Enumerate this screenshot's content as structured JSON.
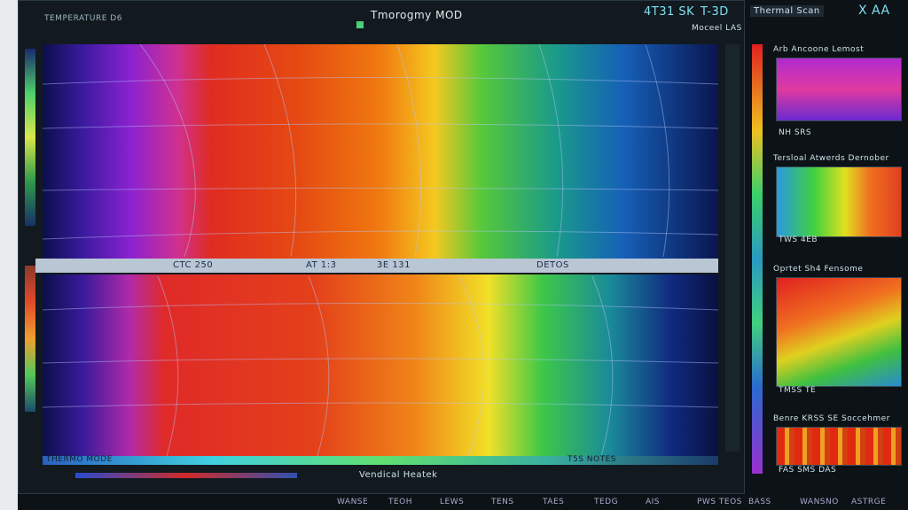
{
  "header": {
    "title": "Tmorogmy MOD",
    "left_label": "TEMPERATURE D6",
    "readouts": [
      "4T31 SK",
      "T-3D"
    ],
    "menu": "Thermal Scan",
    "corner": "X AA"
  },
  "main": {
    "divider_labels": [
      "CTC 250",
      "AT 1:3",
      "3E 131",
      "DETOS"
    ],
    "bottom_left": "THERMO MODE",
    "bottom_right": "T5S NOTES",
    "bottom_caption": "Vendical Heatek"
  },
  "side": {
    "header": "Moceel LAS",
    "panels": [
      {
        "title": "Arb Ancoone Lemost",
        "caption": "NH SRS"
      },
      {
        "title": "Tersloal Atwerds Dernober",
        "caption": "TWS 4EB"
      },
      {
        "title": "Oprtet Sh4 Fensome",
        "caption": "TMSS TE"
      },
      {
        "title": "Benre KRSS SE Soccehmer",
        "caption": "FAS SMS DAS"
      }
    ]
  },
  "footer": {
    "items": [
      "WANSE",
      "TEOH",
      "LEWS",
      "TENS",
      "TAES",
      "TEDG",
      "AIS",
      "PWS TEOS",
      "BASS",
      "WANSNO",
      "ASTRGE"
    ]
  }
}
